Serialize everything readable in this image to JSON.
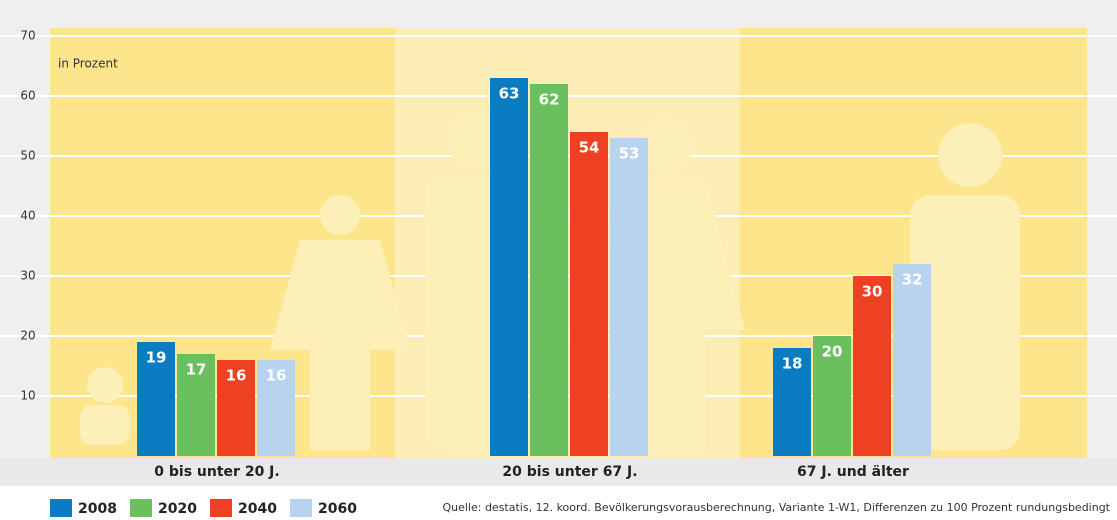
{
  "chart_data": {
    "type": "bar",
    "unit_label": "in Prozent",
    "source": "Quelle: destatis, 12. koord. Bevölkerungsvorausberechnung, Variante 1-W1, Differenzen zu 100 Prozent rundungsbedingt",
    "categories": [
      "0 bis unter 20 J.",
      "20 bis unter 67 J.",
      "67 J. und älter"
    ],
    "series": [
      {
        "name": "2008",
        "color": "#0a7dc2",
        "values": [
          19,
          63,
          18
        ]
      },
      {
        "name": "2020",
        "color": "#6abf5e",
        "values": [
          17,
          62,
          20
        ]
      },
      {
        "name": "2040",
        "color": "#ee4023",
        "values": [
          16,
          54,
          30
        ]
      },
      {
        "name": "2060",
        "color": "#b8d3ee",
        "values": [
          16,
          53,
          32
        ]
      }
    ],
    "ylim": [
      0,
      75
    ],
    "yticks": [
      10,
      20,
      30,
      40,
      50,
      60,
      70
    ],
    "grid": true
  }
}
